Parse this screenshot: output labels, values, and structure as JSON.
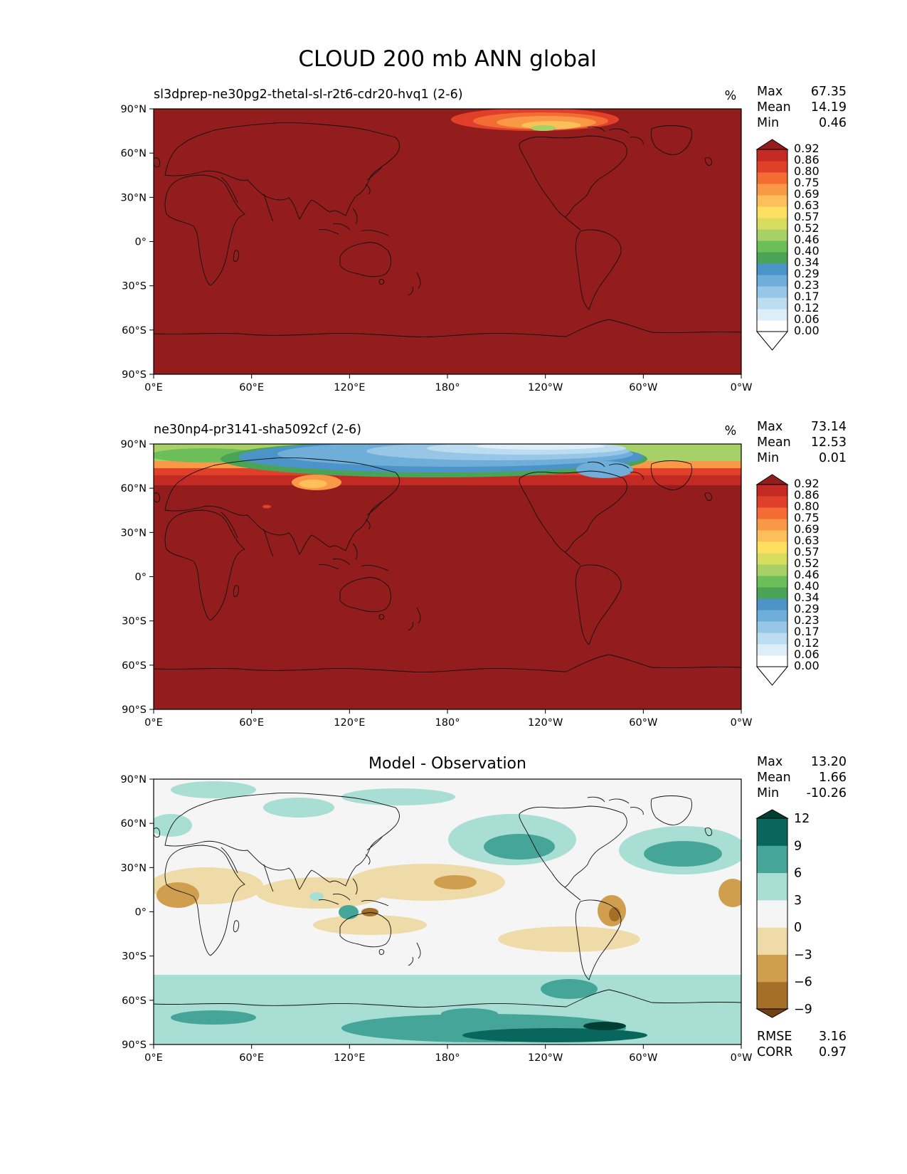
{
  "figure": {
    "title": "CLOUD 200 mb ANN global"
  },
  "panels": [
    {
      "title_left": "sl3dprep-ne30pg2-thetal-sl-r2t6-cdr20-hvq1 (2-6)",
      "units": "%",
      "stats": {
        "max": "67.35",
        "mean": "14.19",
        "min": "0.46"
      },
      "colorbar": [
        "0.00",
        "0.06",
        "0.12",
        "0.17",
        "0.23",
        "0.29",
        "0.34",
        "0.40",
        "0.46",
        "0.52",
        "0.57",
        "0.63",
        "0.69",
        "0.75",
        "0.80",
        "0.86",
        "0.92"
      ]
    },
    {
      "title_left": "ne30np4-pr3141-sha5092cf (2-6)",
      "units": "%",
      "stats": {
        "max": "73.14",
        "mean": "12.53",
        "min": "0.01"
      },
      "colorbar": [
        "0.00",
        "0.06",
        "0.12",
        "0.17",
        "0.23",
        "0.29",
        "0.34",
        "0.40",
        "0.46",
        "0.52",
        "0.57",
        "0.63",
        "0.69",
        "0.75",
        "0.80",
        "0.86",
        "0.92"
      ]
    },
    {
      "title_center": "Model - Observation",
      "stats": {
        "max": "13.20",
        "mean": "1.66",
        "min": "-10.26"
      },
      "colorbar": [
        "−9",
        "−6",
        "−3",
        "0",
        "3",
        "6",
        "9",
        "12"
      ],
      "rmse": "3.16",
      "corr": "0.97"
    }
  ],
  "labels": {
    "max": "Max",
    "mean": "Mean",
    "min": "Min",
    "rmse": "RMSE",
    "corr": "CORR"
  },
  "axes": {
    "lat_ticks": [
      "90°N",
      "60°N",
      "30°N",
      "0°",
      "30°S",
      "60°S",
      "90°S"
    ],
    "lon_ticks": [
      "0°E",
      "60°E",
      "120°E",
      "180°",
      "120°W",
      "60°W",
      "0°W"
    ]
  },
  "chart_data": [
    {
      "type": "heatmap",
      "projection": "PlateCarree, centered 180°",
      "xlim": [
        0,
        360
      ],
      "ylim": [
        -90,
        90
      ],
      "description_values": {
        "max": 67.35,
        "mean": 14.19,
        "min": 0.46
      },
      "dominant_value": "above 0.92 (dark red) almost everywhere; lower values only near the North Pole around 150°W–80°W",
      "colorbar_levels": [
        0.0,
        0.06,
        0.12,
        0.17,
        0.23,
        0.29,
        0.34,
        0.4,
        0.46,
        0.52,
        0.57,
        0.63,
        0.69,
        0.75,
        0.8,
        0.86,
        0.92
      ]
    },
    {
      "type": "heatmap",
      "projection": "PlateCarree, centered 180°",
      "xlim": [
        0,
        360
      ],
      "ylim": [
        -90,
        90
      ],
      "description_values": {
        "max": 73.14,
        "mean": 12.53,
        "min": 0.01
      },
      "dominant_value": "above 0.92 (dark red) south of ~65°N; blue/green low values across the Arctic band 70°N–90°N",
      "colorbar_levels": [
        0.0,
        0.06,
        0.12,
        0.17,
        0.23,
        0.29,
        0.34,
        0.4,
        0.46,
        0.52,
        0.57,
        0.63,
        0.69,
        0.75,
        0.8,
        0.86,
        0.92
      ]
    },
    {
      "type": "heatmap",
      "projection": "PlateCarree, centered 180°",
      "xlim": [
        0,
        360
      ],
      "ylim": [
        -90,
        90
      ],
      "description_values": {
        "max": 13.2,
        "mean": 1.66,
        "min": -10.26,
        "rmse": 3.16,
        "corr": 0.97
      },
      "colorbar_levels": [
        -9,
        -6,
        -3,
        0,
        3,
        6,
        9,
        12
      ]
    }
  ],
  "colors": {
    "seq": [
      "#ffffff",
      "#ddeef9",
      "#bcdcf0",
      "#97c6e6",
      "#6eaed8",
      "#4c93c8",
      "#4ba357",
      "#6cbf58",
      "#a7d066",
      "#d8dd5f",
      "#fee060",
      "#fdbf5a",
      "#f99846",
      "#f26c34",
      "#e0402a",
      "#c32a23",
      "#931c1c"
    ],
    "div": [
      "#6f4113",
      "#a56f28",
      "#cf9f4f",
      "#efdba8",
      "#f5f5f5",
      "#a8ded3",
      "#44a598",
      "#08665c",
      "#013f35"
    ]
  }
}
